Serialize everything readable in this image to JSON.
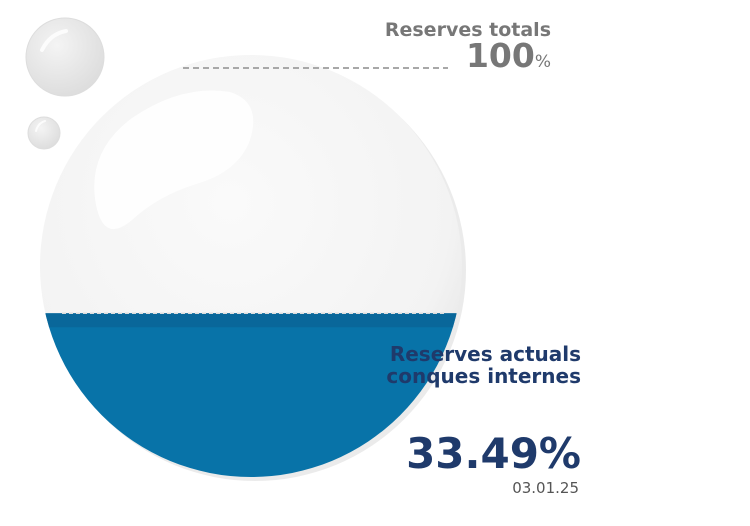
{
  "chart_data": {
    "type": "area",
    "total": {
      "title": "Reserves totals",
      "value": 100,
      "value_text": "100",
      "unit": "%"
    },
    "current": {
      "title": "Reserves actuals conques internes",
      "value": 33.49,
      "value_text": "33.49%",
      "date": "03.01.25"
    }
  },
  "colors": {
    "water": "#0873a8",
    "water_top": "#0a6396",
    "sphere": "#f4f4f4",
    "total_text": "#777777",
    "current_text": "#1f3a6b"
  }
}
